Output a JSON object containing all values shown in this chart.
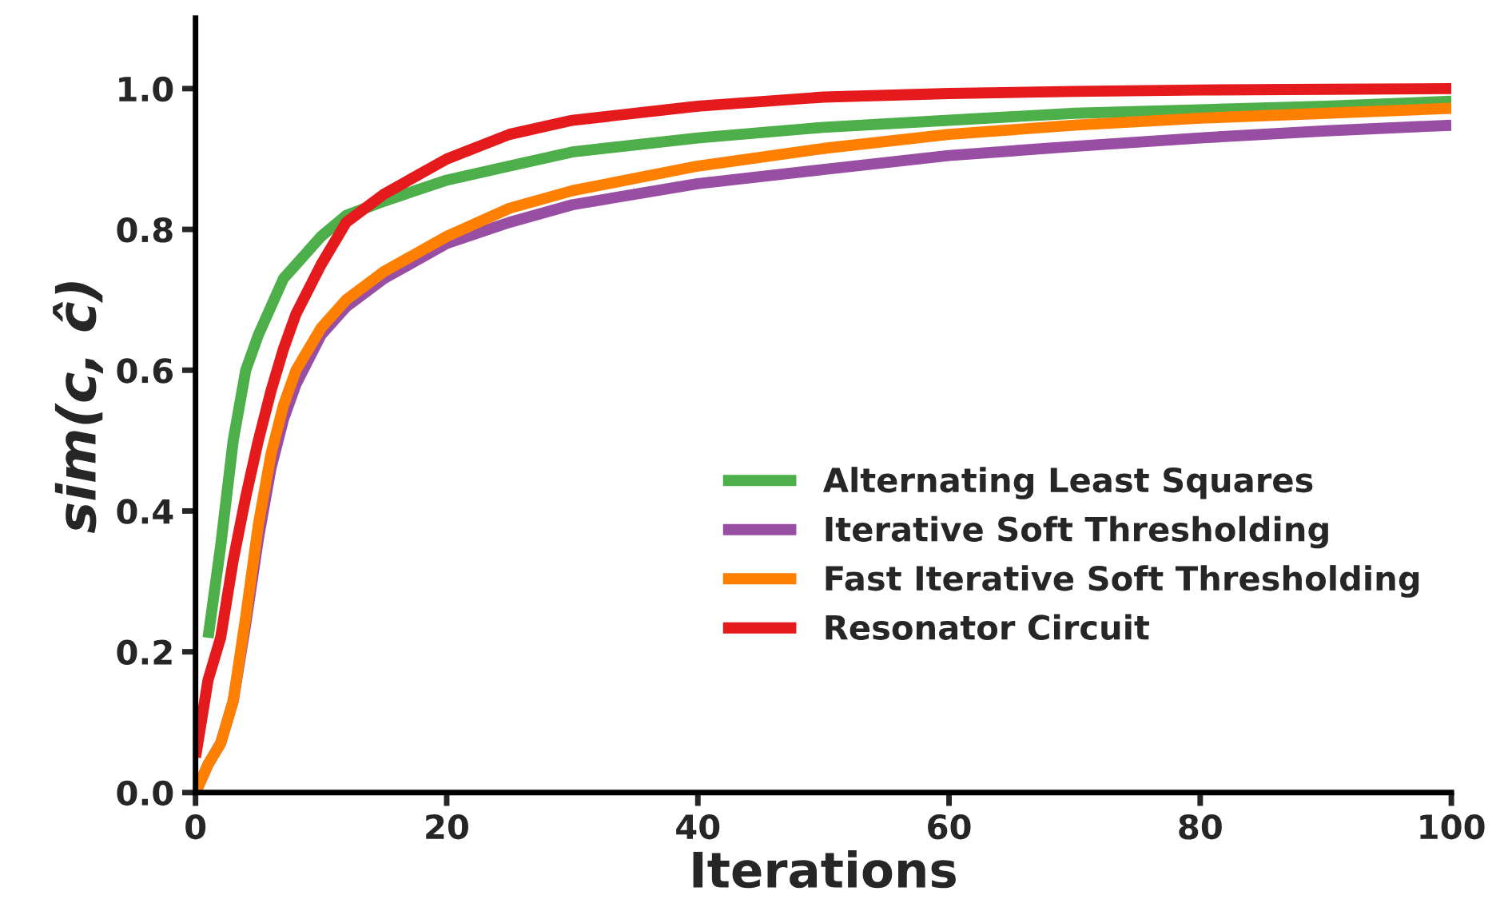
{
  "chart_data": {
    "type": "line",
    "xlabel": "Iterations",
    "ylabel": "sim(c, ĉ)",
    "x": [
      0,
      1,
      2,
      3,
      4,
      5,
      6,
      7,
      8,
      10,
      12,
      15,
      20,
      25,
      30,
      40,
      50,
      60,
      70,
      80,
      90,
      100
    ],
    "series": [
      {
        "name": "Alternating Least Squares",
        "color": "#4daf4a",
        "values": [
          null,
          0.22,
          0.35,
          0.5,
          0.6,
          0.65,
          0.69,
          0.73,
          0.75,
          0.79,
          0.82,
          0.84,
          0.87,
          0.89,
          0.91,
          0.93,
          0.945,
          0.955,
          0.965,
          0.97,
          0.975,
          0.982
        ]
      },
      {
        "name": "Iterative Soft Thresholding",
        "color": "#984ea3",
        "values": [
          0,
          0.04,
          0.07,
          0.13,
          0.24,
          0.36,
          0.46,
          0.53,
          0.58,
          0.65,
          0.69,
          0.73,
          0.78,
          0.81,
          0.835,
          0.865,
          0.885,
          0.905,
          0.918,
          0.93,
          0.94,
          0.948
        ]
      },
      {
        "name": "Fast Iterative Soft Thresholding",
        "color": "#ff7f00",
        "values": [
          0,
          0.04,
          0.07,
          0.13,
          0.25,
          0.38,
          0.48,
          0.55,
          0.6,
          0.66,
          0.7,
          0.74,
          0.79,
          0.83,
          0.855,
          0.89,
          0.915,
          0.935,
          0.948,
          0.958,
          0.965,
          0.972
        ]
      },
      {
        "name": "Resonator Circuit",
        "color": "#e41a1c",
        "values": [
          0.05,
          0.16,
          0.22,
          0.33,
          0.42,
          0.5,
          0.57,
          0.63,
          0.68,
          0.75,
          0.81,
          0.85,
          0.9,
          0.935,
          0.955,
          0.975,
          0.988,
          0.993,
          0.996,
          0.998,
          0.999,
          1.0
        ]
      }
    ],
    "xlim": [
      0,
      100
    ],
    "xticks": [
      0,
      20,
      40,
      60,
      80,
      100
    ],
    "ylim": [
      0,
      1.1
    ],
    "yticks": [
      {
        "value": 0,
        "label": "0.0"
      },
      {
        "value": 0.2,
        "label": "0.2"
      },
      {
        "value": 0.4,
        "label": "0.4"
      },
      {
        "value": 0.6,
        "label": "0.6"
      },
      {
        "value": 0.8,
        "label": "0.8"
      },
      {
        "value": 1.0,
        "label": "1.0"
      }
    ],
    "grid": false,
    "legend": "lower right",
    "marker": "none",
    "line_style": "solid"
  }
}
